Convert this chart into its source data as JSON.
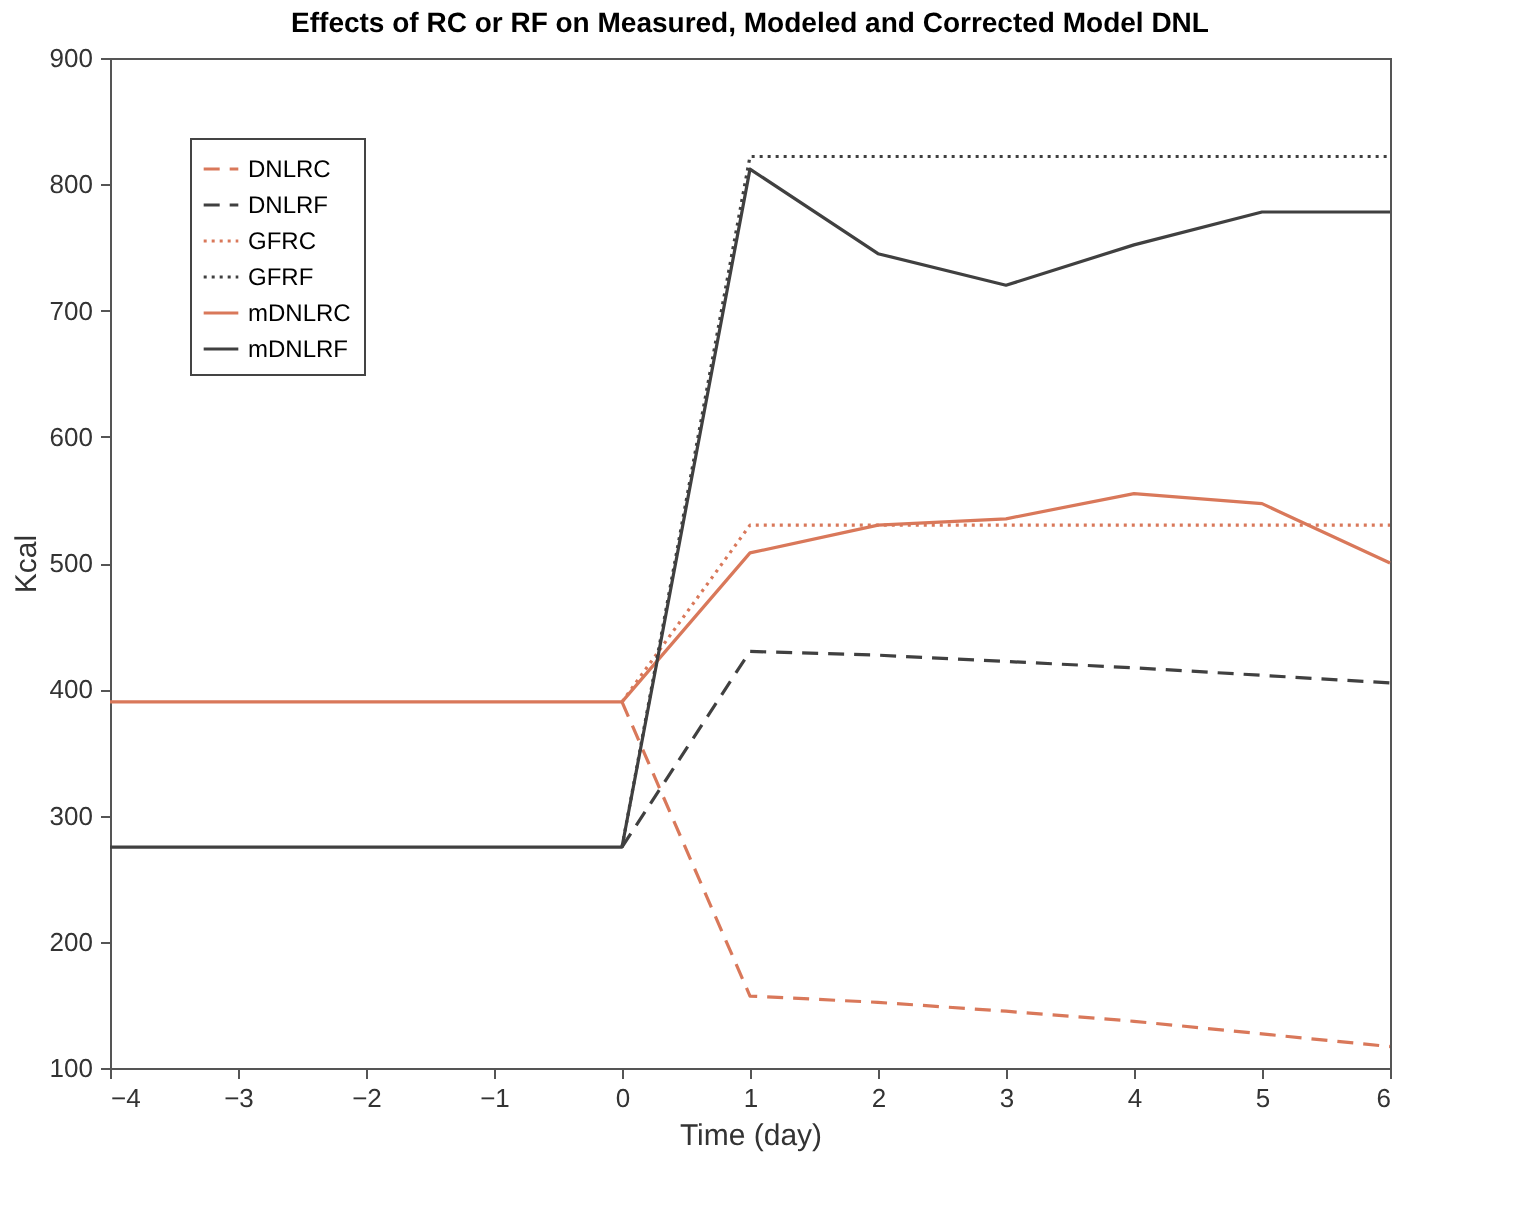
{
  "chart_data": {
    "type": "line",
    "title": "Effects of RC or RF on Measured, Modeled and Corrected Model DNL",
    "xlabel": "Time (day)",
    "ylabel": "Kcal",
    "xlim": [
      -4,
      6
    ],
    "xticks": [
      -4,
      -3,
      -2,
      -1,
      0,
      1,
      2,
      3,
      4,
      5,
      6
    ],
    "ylim": [
      100,
      900
    ],
    "yticks": [
      100,
      200,
      300,
      400,
      500,
      600,
      700,
      800,
      900
    ],
    "grid": false,
    "legend": "top left",
    "marker": "none",
    "series": [
      {
        "name": "DNLRC",
        "color": "#d9785a",
        "line_style": "dashed",
        "x": [
          0,
          1,
          2,
          3,
          4,
          5,
          6
        ],
        "values": [
          390,
          157,
          152,
          145,
          137,
          127,
          117
        ]
      },
      {
        "name": "DNLRF",
        "color": "#404040",
        "line_style": "dashed",
        "x": [
          0,
          1,
          2,
          3,
          4,
          5,
          6
        ],
        "values": [
          275,
          430,
          427,
          422,
          417,
          411,
          405
        ]
      },
      {
        "name": "GFRC",
        "color": "#d9785a",
        "line_style": "dotted",
        "x": [
          0,
          1,
          2,
          3,
          4,
          5,
          6
        ],
        "values": [
          390,
          530,
          530,
          530,
          530,
          530,
          530
        ]
      },
      {
        "name": "GFRF",
        "color": "#404040",
        "line_style": "dotted",
        "x": [
          0,
          1,
          2,
          3,
          4,
          5,
          6
        ],
        "values": [
          275,
          822,
          822,
          822,
          822,
          822,
          822
        ]
      },
      {
        "name": "mDNLRC",
        "color": "#d9785a",
        "line_style": "solid",
        "x": [
          -4,
          -3,
          -2,
          -1,
          0,
          1,
          2,
          3,
          4,
          5,
          6
        ],
        "values": [
          390,
          390,
          390,
          390,
          390,
          508,
          530,
          535,
          555,
          547,
          500
        ]
      },
      {
        "name": "mDNLRF",
        "color": "#404040",
        "line_style": "solid",
        "x": [
          -4,
          -3,
          -2,
          -1,
          0,
          1,
          2,
          3,
          4,
          5,
          6
        ],
        "values": [
          275,
          275,
          275,
          275,
          275,
          812,
          745,
          720,
          752,
          778,
          778
        ]
      }
    ]
  }
}
